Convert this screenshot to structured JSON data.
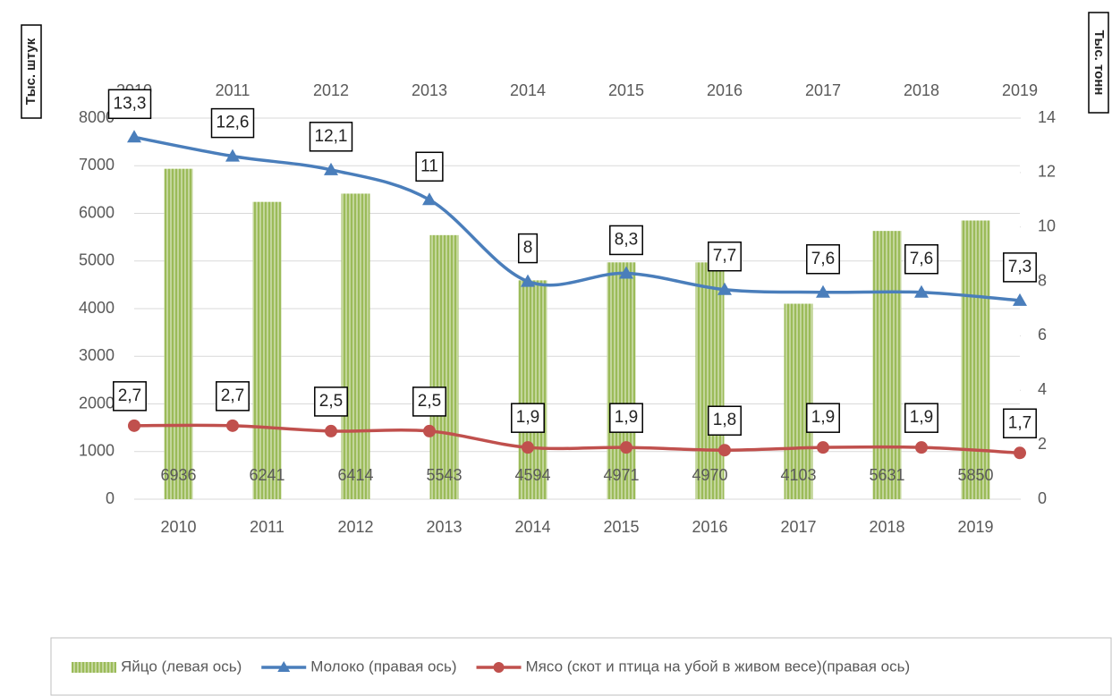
{
  "chart_data": {
    "type": "combo",
    "categories": [
      "2010",
      "2011",
      "2012",
      "2013",
      "2014",
      "2015",
      "2016",
      "2017",
      "2018",
      "2019"
    ],
    "top_categories": [
      "2010",
      "2011",
      "2012",
      "2013",
      "2014",
      "2015",
      "2016",
      "2017",
      "2018",
      "2019"
    ],
    "ylabel": "Тыс. штук",
    "y2label": "Тыс. тонн",
    "ylim": [
      0,
      8000
    ],
    "yticks": [
      0,
      1000,
      2000,
      3000,
      4000,
      5000,
      6000,
      7000,
      8000
    ],
    "y2lim": [
      0,
      14
    ],
    "y2ticks": [
      0,
      2,
      4,
      6,
      8,
      10,
      12,
      14
    ],
    "grid": true,
    "legend": "bottom",
    "series": [
      {
        "name": "Яйцо (левая ось)",
        "type": "bar",
        "axis": "y",
        "color": "#9bbb59",
        "values": [
          6936,
          6241,
          6414,
          5543,
          4594,
          4971,
          4970,
          4103,
          5631,
          5850
        ]
      },
      {
        "name": "Молоко (правая ось)",
        "type": "line",
        "axis": "y2",
        "color": "#4a7ebb",
        "marker": "triangle",
        "values": [
          13.3,
          12.6,
          12.1,
          11,
          8,
          8.3,
          7.7,
          7.6,
          7.6,
          7.3
        ],
        "value_labels": [
          "13,3",
          "12,6",
          "12,1",
          "11",
          "8",
          "8,3",
          "7,7",
          "7,6",
          "7,6",
          "7,3"
        ]
      },
      {
        "name": "Мясо (скот и птица на убой в живом весе)(правая ось)",
        "type": "line",
        "axis": "y2",
        "color": "#c0504d",
        "marker": "circle",
        "values": [
          2.7,
          2.7,
          2.5,
          2.5,
          1.9,
          1.9,
          1.8,
          1.9,
          1.9,
          1.7
        ],
        "value_labels": [
          "2,7",
          "2,7",
          "2,5",
          "2,5",
          "1,9",
          "1,9",
          "1,8",
          "1,9",
          "1,9",
          "1,7"
        ]
      }
    ]
  }
}
